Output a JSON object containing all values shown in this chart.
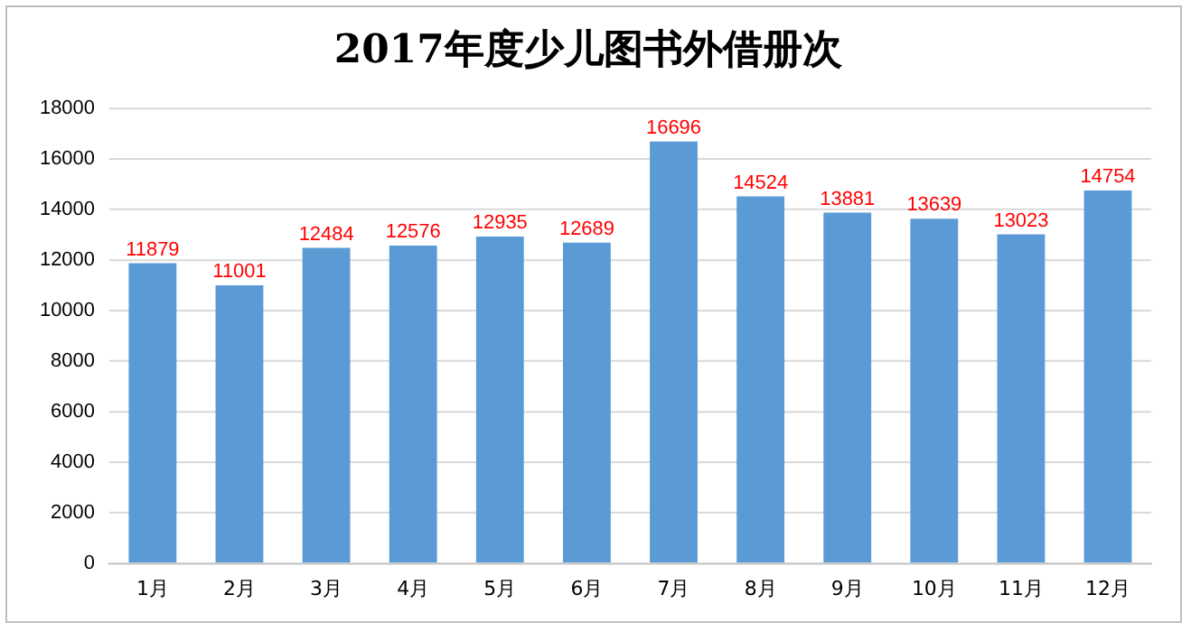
{
  "chart_data": {
    "type": "bar",
    "title": "2017年度少儿图书外借册次",
    "categories": [
      "1月",
      "2月",
      "3月",
      "4月",
      "5月",
      "6月",
      "7月",
      "8月",
      "9月",
      "10月",
      "11月",
      "12月"
    ],
    "values": [
      11879,
      11001,
      12484,
      12576,
      12935,
      12689,
      16696,
      14524,
      13881,
      13639,
      13023,
      14754
    ],
    "color": "#5b9bd5",
    "ylim": [
      0,
      18000
    ],
    "yticks": [
      0,
      2000,
      4000,
      6000,
      8000,
      10000,
      12000,
      14000,
      16000,
      18000
    ],
    "grid": "y",
    "legend": false,
    "data_labels": true
  }
}
